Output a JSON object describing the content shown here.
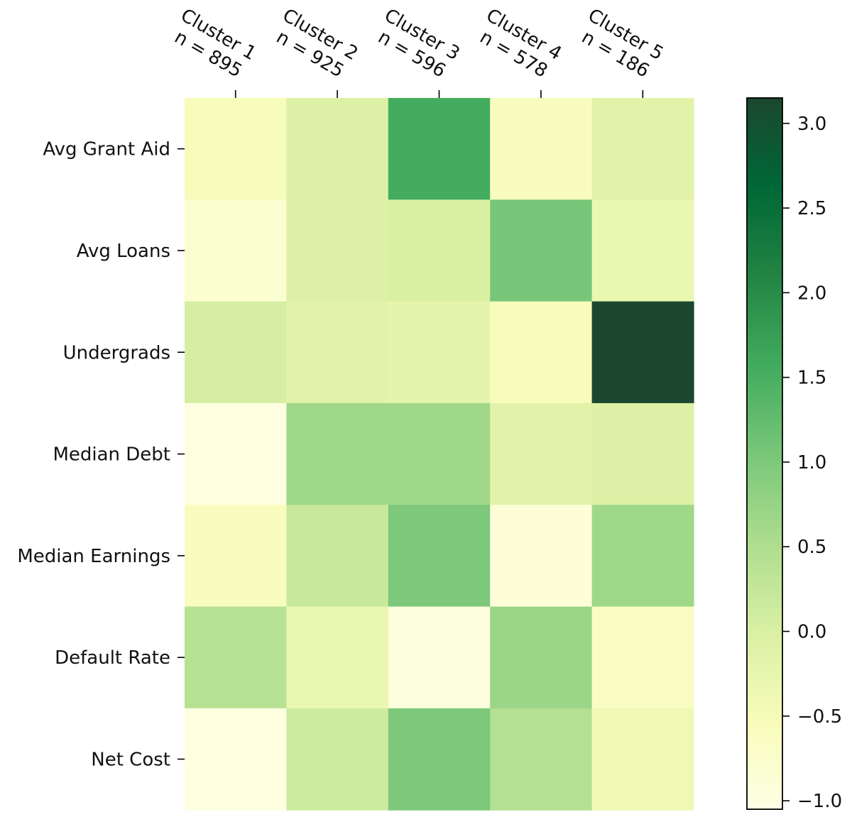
{
  "chart_data": {
    "type": "heatmap",
    "title": "",
    "xlabel": "",
    "ylabel": "",
    "columns": [
      {
        "label": "Cluster 1",
        "n_label": "n = 895"
      },
      {
        "label": "Cluster 2",
        "n_label": "n = 925"
      },
      {
        "label": "Cluster 3",
        "n_label": "n = 596"
      },
      {
        "label": "Cluster 4",
        "n_label": "n = 578"
      },
      {
        "label": "Cluster 5",
        "n_label": "n = 186"
      }
    ],
    "rows": [
      "Avg Grant Aid",
      "Avg Loans",
      "Undergrads",
      "Median Debt",
      "Median Earnings",
      "Default Rate",
      "Net Cost"
    ],
    "values": [
      [
        -0.55,
        -0.05,
        1.55,
        -0.6,
        -0.15
      ],
      [
        -0.8,
        -0.05,
        0.0,
        1.05,
        -0.3
      ],
      [
        0.05,
        -0.15,
        -0.2,
        -0.55,
        3.15
      ],
      [
        -1.0,
        0.65,
        0.65,
        -0.15,
        -0.05
      ],
      [
        -0.6,
        0.2,
        1.0,
        -0.9,
        0.65
      ],
      [
        0.4,
        -0.3,
        -0.95,
        0.7,
        -0.65
      ],
      [
        -1.0,
        0.15,
        1.0,
        0.45,
        -0.4
      ]
    ],
    "colorbar": {
      "range": [
        -1.05,
        3.15
      ],
      "ticks": [
        -1.0,
        -0.5,
        0.0,
        0.5,
        1.0,
        1.5,
        2.0,
        2.5,
        3.0
      ],
      "tick_labels": [
        "−1.0",
        "−0.5",
        "0.0",
        "0.5",
        "1.0",
        "1.5",
        "2.0",
        "2.5",
        "3.0"
      ],
      "colormap": [
        "#ffffe5",
        "#f7fcb9",
        "#d9f0a3",
        "#addd8e",
        "#78c679",
        "#41ab5d",
        "#238443",
        "#006837",
        "#004529"
      ],
      "dark_end": "#1b472f"
    },
    "x_axis_position": "top",
    "grid": false,
    "legend": "colorbar-right"
  }
}
